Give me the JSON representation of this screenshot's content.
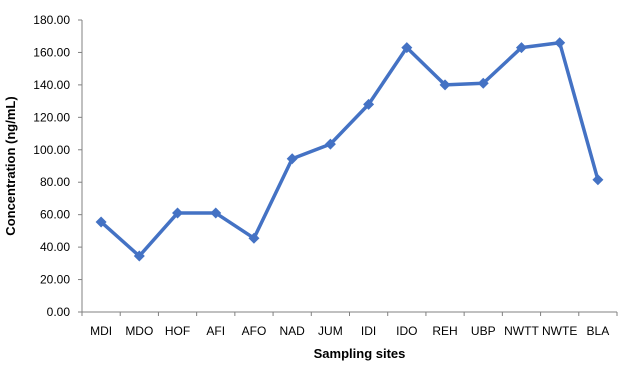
{
  "chart_data": {
    "type": "line",
    "categories": [
      "MDI",
      "MDO",
      "HOF",
      "AFI",
      "AFO",
      "NAD",
      "JUM",
      "IDI",
      "IDO",
      "REH",
      "UBP",
      "NWTT",
      "NWTE",
      "BLA"
    ],
    "series": [
      {
        "values": [
          55.5,
          34.5,
          61.0,
          61.0,
          45.5,
          94.5,
          103.5,
          128.0,
          163.0,
          140.0,
          141.0,
          163.0,
          166.0,
          81.5
        ]
      }
    ],
    "title": "",
    "xlabel": "Sampling sites",
    "ylabel": "Concentration (ng/mL)",
    "ylim": [
      0,
      180
    ],
    "yticks": [
      "0.00",
      "20.00",
      "40.00",
      "60.00",
      "80.00",
      "100.00",
      "120.00",
      "140.00",
      "160.00",
      "180.00"
    ],
    "grid": false,
    "legend": "none",
    "colors": {
      "series": "#4472C4",
      "axis": "#808080"
    }
  }
}
